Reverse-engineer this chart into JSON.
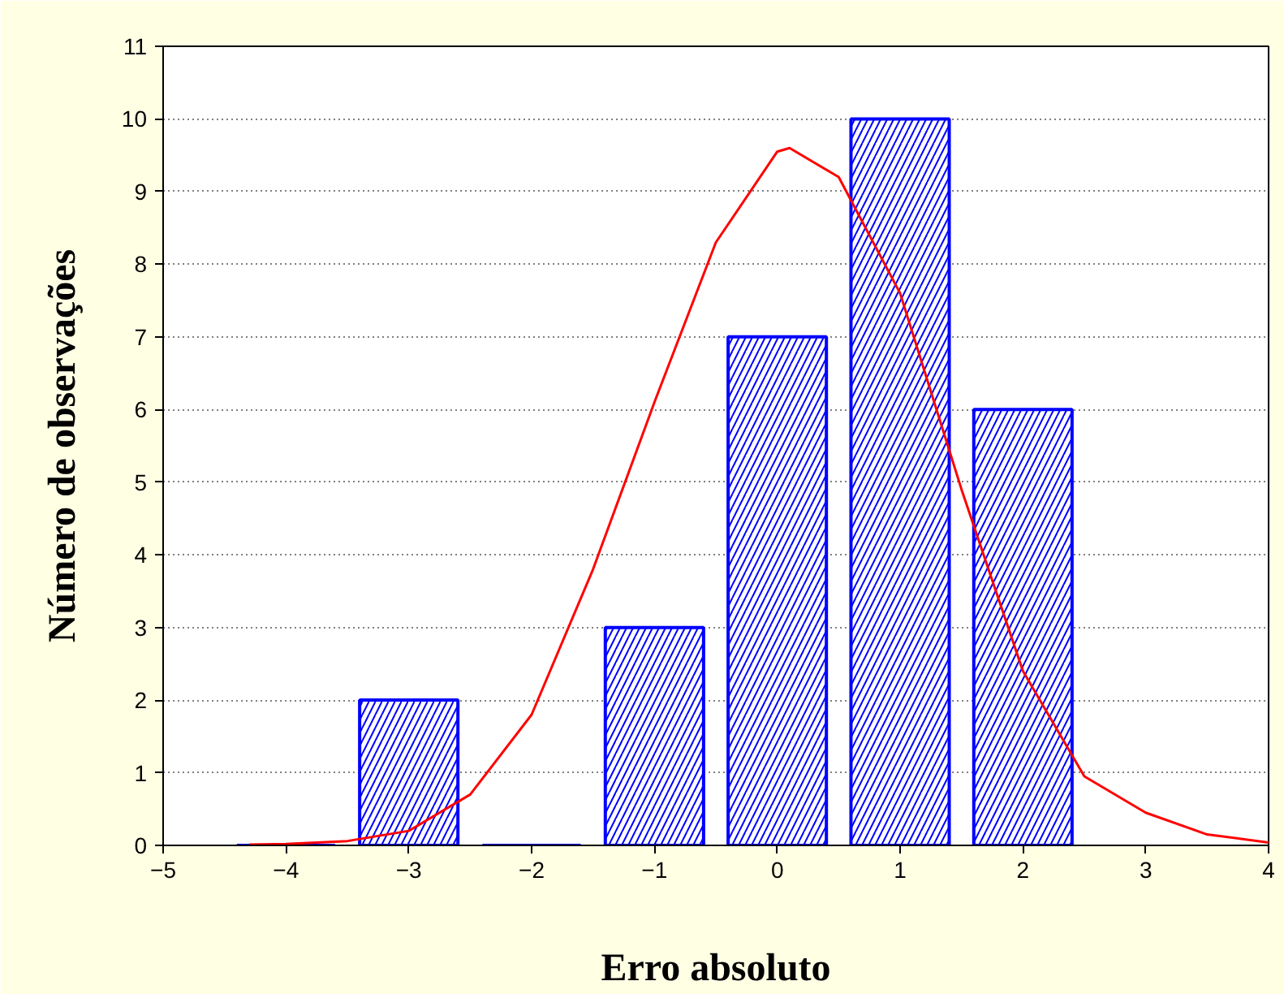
{
  "chart_data": {
    "type": "bar",
    "xlabel": "Erro absoluto",
    "ylabel": "Número de observações",
    "xlim": [
      -5,
      4
    ],
    "xticks": [
      -5,
      -4,
      -3,
      -2,
      -1,
      0,
      1,
      2,
      3,
      4
    ],
    "ylim": [
      0,
      11
    ],
    "yticks": [
      0,
      1,
      2,
      3,
      4,
      5,
      6,
      7,
      8,
      9,
      10,
      11
    ],
    "grid": "y",
    "series": [
      {
        "color": "#0000ff",
        "x": [
          -4,
          -3,
          -2,
          -1,
          0,
          1,
          2
        ],
        "values": [
          0,
          2,
          0,
          3,
          7,
          10,
          6
        ]
      },
      {
        "type": "line",
        "color": "#ff0000",
        "x": [
          -4.3,
          -4,
          -3.5,
          -3,
          -2.5,
          -2,
          -1.5,
          -1,
          -0.5,
          0,
          0.1,
          0.5,
          1,
          1.5,
          2,
          2.5,
          3,
          3.5,
          4
        ],
        "values": [
          0.01,
          0.02,
          0.06,
          0.2,
          0.7,
          1.8,
          3.8,
          6.1,
          8.3,
          9.55,
          9.6,
          9.2,
          7.6,
          4.9,
          2.4,
          0.95,
          0.45,
          0.15,
          0.04
        ]
      }
    ]
  }
}
